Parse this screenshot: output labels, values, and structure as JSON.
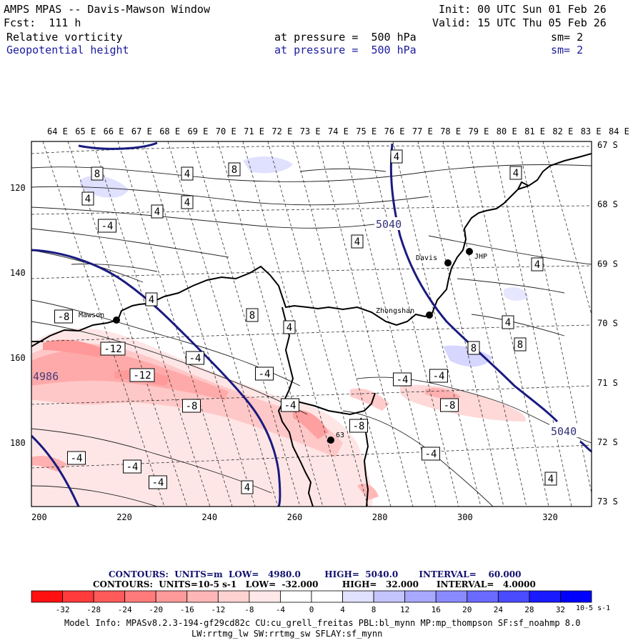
{
  "header": {
    "title": "AMPS MPAS -- Davis-Mawson Window",
    "init": "Init: 00 UTC Sun 01 Feb 26",
    "fcst": "Fcst:  111 h",
    "valid": "Valid: 15 UTC Thu 05 Feb 26",
    "field1": {
      "name": "Relative vorticity",
      "level": "at pressure =  500 hPa",
      "sm": "sm= 2"
    },
    "field2": {
      "name": "Geopotential height",
      "level": "at pressure =  500 hPa",
      "sm": "sm= 2"
    }
  },
  "top_lon_labels": [
    "64 E",
    "65 E",
    "66 E",
    "67 E",
    "68 E",
    "69 E",
    "70 E",
    "71 E",
    "72 E",
    "73 E",
    "74 E",
    "75 E",
    "76 E",
    "77 E",
    "78 E",
    "79 E",
    "80 E",
    "81 E",
    "82 E",
    "83 E",
    "84 E"
  ],
  "right_lat_labels": [
    "67 S",
    "68 S",
    "69 S",
    "70 S",
    "71 S",
    "72 S",
    "73 S"
  ],
  "left_y_labels": [
    "120",
    "140",
    "160",
    "180"
  ],
  "bottom_x_labels": [
    "200",
    "220",
    "240",
    "260",
    "280",
    "300",
    "320"
  ],
  "stations": [
    "Mawson",
    "Davis",
    "Zhongshan",
    "JHP",
    "63"
  ],
  "height_labels": [
    "5040",
    "5040",
    "4986"
  ],
  "vort_labels": [
    "8",
    "4",
    "8",
    "4",
    "4",
    "4",
    "-4",
    "4",
    "4",
    "4",
    "4",
    "-8",
    "4",
    "8",
    "-12",
    "-12",
    "-4",
    "-4",
    "-8",
    "-4",
    "-8",
    "-4",
    "-4",
    "4",
    "-8",
    "8",
    "4",
    "8",
    "-4",
    "4",
    "-4",
    "-4",
    "-4",
    "4"
  ],
  "footer": {
    "line1": "CONTOURS:  UNITS=m  LOW=   4980.0        HIGH=  5040.0       INTERVAL=    60.000",
    "line2": "CONTOURS:  UNITS=10-5 s-1   LOW=  -32.000        HIGH=   32.000      INTERVAL=   4.0000",
    "colorbar_ticks": [
      "-32",
      "-28",
      "-24",
      "-20",
      "-16",
      "-12",
      "-8",
      "-4",
      "0",
      "4",
      "8",
      "12",
      "16",
      "20",
      "24",
      "28",
      "32"
    ],
    "colorbar_units": "10-5 s-1",
    "colorbar_colors": [
      "#ff1010",
      "#ff3a3a",
      "#ff5a5a",
      "#ff7a7a",
      "#ff9a9a",
      "#ffb6b6",
      "#ffd2d2",
      "#ffe8e8",
      "#ffffff",
      "#ffffff",
      "#e0e0ff",
      "#c4c4ff",
      "#a8a8ff",
      "#8a8aff",
      "#6a6aff",
      "#4a4aff",
      "#1a1aff",
      "#0000ff"
    ],
    "model_info_1": "Model Info: MPASv8.2.3-194-gf29cd82c CU:cu_grell_freitas PBL:bl_mynn MP:mp_thompson SF:sf_noahmp 8.0",
    "model_info_2": "LW:rrtmg_lw SW:rrtmg_sw SFLAY:sf_mynn"
  }
}
